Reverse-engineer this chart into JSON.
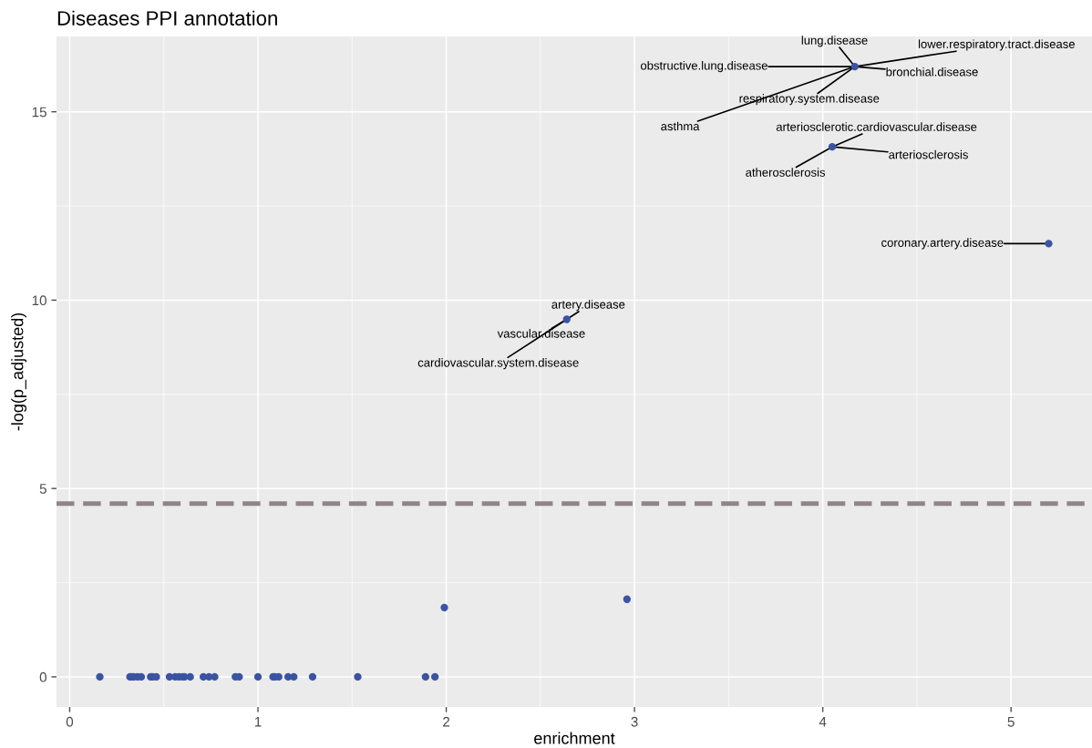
{
  "chart_data": {
    "type": "scatter",
    "title": "Diseases PPI annotation",
    "xlabel": "enrichment",
    "ylabel": "-log(p_adjusted)",
    "series": [
      {
        "color": "#3a54a4",
        "x": [
          0.16,
          0.32,
          0.33,
          0.34,
          0.36,
          0.38,
          0.43,
          0.44,
          0.46,
          0.53,
          0.56,
          0.58,
          0.6,
          0.61,
          0.64,
          0.71,
          0.74,
          0.77,
          0.88,
          0.9,
          1.0,
          1.08,
          1.09,
          1.11,
          1.16,
          1.19,
          1.29,
          1.53,
          1.89,
          1.94,
          1.99,
          2.96,
          2.64,
          4.05,
          4.17,
          5.2
        ],
        "values": [
          0,
          0,
          0,
          0,
          0,
          0,
          0,
          0,
          0,
          0,
          0,
          0,
          0,
          0,
          0,
          0,
          0,
          0,
          0,
          0,
          0,
          0,
          0,
          0,
          0,
          0,
          0,
          0,
          0,
          0,
          1.84,
          2.06,
          9.49,
          14.07,
          16.2,
          11.5
        ]
      }
    ],
    "xlim": [
      -0.07,
      5.43
    ],
    "ylim": [
      -0.8,
      17.0
    ],
    "xticks": [
      0,
      1,
      2,
      3,
      4,
      5
    ],
    "yticks": [
      0,
      5,
      10,
      15
    ],
    "grid": true,
    "marker": "circle",
    "ref_lines": [
      {
        "axis": "y",
        "value": 4.6,
        "color": "#8e8589",
        "line_style": "dashed"
      }
    ],
    "annotations": [
      {
        "text": "lung.disease",
        "x": 4.17,
        "y": 16.2
      },
      {
        "text": "lower.respiratory.tract.disease",
        "x": 4.17,
        "y": 16.2
      },
      {
        "text": "obstructive.lung.disease",
        "x": 4.17,
        "y": 16.2
      },
      {
        "text": "bronchial.disease",
        "x": 4.17,
        "y": 16.2
      },
      {
        "text": "respiratory.system.disease",
        "x": 4.17,
        "y": 16.2
      },
      {
        "text": "asthma",
        "x": 4.17,
        "y": 16.2
      },
      {
        "text": "arteriosclerotic.cardiovascular.disease",
        "x": 4.05,
        "y": 14.07
      },
      {
        "text": "arteriosclerosis",
        "x": 4.05,
        "y": 14.07
      },
      {
        "text": "atherosclerosis",
        "x": 4.05,
        "y": 14.07
      },
      {
        "text": "artery.disease",
        "x": 2.64,
        "y": 9.49
      },
      {
        "text": "vascular.disease",
        "x": 2.64,
        "y": 9.49
      },
      {
        "text": "cardiovascular.system.disease",
        "x": 2.64,
        "y": 9.49
      },
      {
        "text": "coronary.artery.disease",
        "x": 5.2,
        "y": 11.5
      }
    ]
  }
}
